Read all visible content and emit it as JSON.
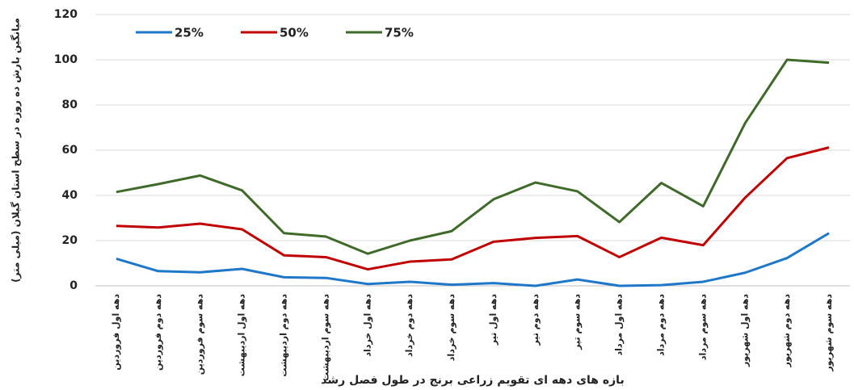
{
  "chart_data": {
    "type": "line",
    "y_label": "میانگین بارش ده روزه در سطح استان گیلان (میلی متر)",
    "x_label": "بازه های دهه ای تقویم زراعی برنج در طول فصل رشد",
    "categories": [
      "دهه اول فروردین",
      "دهه دوم فروردین",
      "دهه سوم فروردین",
      "دهه اول اردیبهشت",
      "دهه دوم اردیبهشت",
      "دهه سوم اردیبهشت",
      "دهه اول خرداد",
      "دهه دوم خرداد",
      "دهه سوم خرداد",
      "دهه اول تیر",
      "دهه دوم تیر",
      "دهه سوم تیر",
      "دهه اول مرداد",
      "دهه دوم مرداد",
      "دهه سوم مرداد",
      "دهه اول شهریور",
      "دهه دوم شهریور",
      "دهه سوم شهریور"
    ],
    "series": [
      {
        "name": "25%",
        "color": "#1f77c8",
        "values": [
          12,
          6.5,
          6,
          7.5,
          3.8,
          3.5,
          0.8,
          1.8,
          0.5,
          1.2,
          0,
          2.8,
          0,
          0.3,
          1.8,
          5.8,
          12.3,
          23.3
        ]
      },
      {
        "name": "50%",
        "color": "#c00000",
        "values": [
          26.5,
          25.8,
          27.5,
          25,
          13.5,
          12.7,
          7.3,
          10.7,
          11.7,
          19.5,
          21.2,
          22,
          12.7,
          21.3,
          18,
          39,
          56.5,
          61.2
        ]
      },
      {
        "name": "75%",
        "color": "#3f6a2a",
        "values": [
          41.5,
          45,
          48.8,
          42.2,
          23.3,
          21.8,
          14.2,
          20,
          24.2,
          38.3,
          45.7,
          41.8,
          28.2,
          45.5,
          35.2,
          72,
          100,
          98.7
        ]
      }
    ],
    "ylim": [
      0,
      120
    ],
    "yticks": [
      0,
      20,
      40,
      60,
      80,
      100,
      120
    ],
    "grid": true,
    "legend": "upper left"
  }
}
